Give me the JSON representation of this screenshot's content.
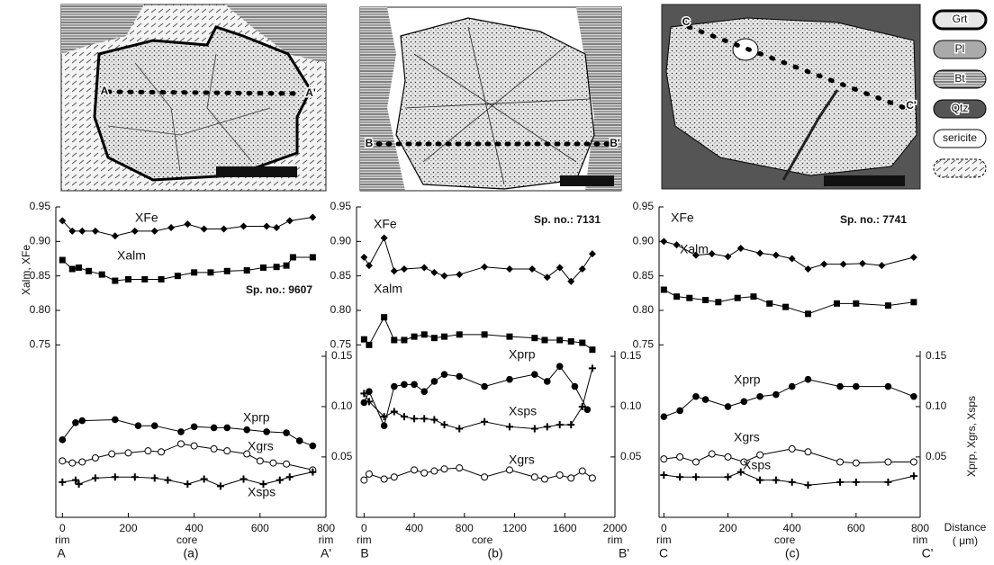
{
  "chart_data": [
    {
      "type": "line",
      "annotation": "Sp. no.: 9607",
      "ylabel": "Xalm, XFe",
      "xlim": [
        -20,
        800
      ],
      "xticks": [
        0,
        200,
        400,
        600,
        800
      ],
      "ylim": [
        0.5,
        0.95
      ],
      "yticks": [
        0.95,
        {
          "value": 0.9,
          "label": "0.90"
        },
        0.85,
        {
          "value": 0.8,
          "label": "0.80"
        },
        0.75
      ],
      "y2lim": [
        -0.01,
        0.15
      ],
      "y2ticks": [
        0.15,
        {
          "value": 0.1,
          "label": "0.10"
        },
        0.05
      ],
      "x_positions": [
        "rim",
        "core",
        "rim"
      ],
      "footer": [
        "A",
        "(a)",
        "A'"
      ],
      "series": [
        {
          "name": "XFe",
          "marker": "diamond",
          "x": [
            0,
            30,
            60,
            100,
            160,
            220,
            280,
            330,
            380,
            430,
            490,
            550,
            620,
            650,
            690,
            760
          ],
          "values": [
            0.93,
            0.915,
            0.915,
            0.915,
            0.908,
            0.915,
            0.915,
            0.92,
            0.925,
            0.918,
            0.918,
            0.922,
            0.922,
            0.92,
            0.93,
            0.935
          ]
        },
        {
          "name": "Xalm",
          "marker": "square",
          "x": [
            0,
            30,
            50,
            80,
            120,
            160,
            200,
            250,
            300,
            350,
            400,
            450,
            500,
            560,
            610,
            650,
            680,
            700,
            760
          ],
          "values": [
            0.873,
            0.86,
            0.862,
            0.857,
            0.852,
            0.843,
            0.845,
            0.845,
            0.845,
            0.85,
            0.855,
            0.855,
            0.857,
            0.858,
            0.862,
            0.863,
            0.865,
            0.877,
            0.877
          ]
        },
        {
          "name": "Xprp",
          "axis": "y2",
          "marker": "circle",
          "x": [
            0,
            40,
            60,
            160,
            230,
            280,
            360,
            400,
            460,
            500,
            560,
            620,
            680,
            720,
            760
          ],
          "values": [
            0.067,
            0.084,
            0.086,
            0.087,
            0.081,
            0.081,
            0.075,
            0.08,
            0.079,
            0.079,
            0.077,
            0.075,
            0.074,
            0.066,
            0.061
          ]
        },
        {
          "name": "Xgrs",
          "axis": "y2",
          "marker": "open-circle",
          "x": [
            0,
            30,
            60,
            100,
            150,
            200,
            260,
            300,
            360,
            400,
            460,
            500,
            560,
            600,
            640,
            680,
            760
          ],
          "values": [
            0.046,
            0.044,
            0.045,
            0.049,
            0.053,
            0.054,
            0.056,
            0.055,
            0.063,
            0.061,
            0.058,
            0.056,
            0.053,
            0.046,
            0.044,
            0.043,
            0.037
          ]
        },
        {
          "name": "Xsps",
          "axis": "y2",
          "marker": "plus",
          "x": [
            0,
            40,
            50,
            100,
            160,
            220,
            280,
            320,
            380,
            430,
            480,
            550,
            610,
            660,
            690,
            760
          ],
          "values": [
            0.025,
            0.027,
            0.023,
            0.029,
            0.03,
            0.03,
            0.029,
            0.027,
            0.023,
            0.028,
            0.021,
            0.028,
            0.023,
            0.027,
            0.03,
            0.035
          ]
        }
      ]
    },
    {
      "type": "line",
      "annotation": "Sp. no.: 7131",
      "xlim": [
        -60,
        2000
      ],
      "xticks": [
        0,
        400,
        800,
        1200,
        1600,
        2000
      ],
      "ylim": [
        0.5,
        0.95
      ],
      "yticks": [
        0.95,
        {
          "value": 0.9,
          "label": "0.90"
        },
        0.85,
        {
          "value": 0.8,
          "label": "0.80"
        },
        0.75
      ],
      "y2lim": [
        -0.01,
        0.15
      ],
      "y2ticks": [
        0.15,
        {
          "value": 0.1,
          "label": "0.10"
        },
        0.05
      ],
      "x_positions": [
        "rim",
        "core",
        "rim"
      ],
      "footer": [
        "B",
        "(b)",
        "B'"
      ],
      "series": [
        {
          "name": "XFe",
          "marker": "diamond",
          "x": [
            0,
            40,
            160,
            240,
            320,
            480,
            560,
            640,
            760,
            960,
            1160,
            1340,
            1460,
            1560,
            1650,
            1740,
            1820
          ],
          "values": [
            0.877,
            0.865,
            0.905,
            0.857,
            0.86,
            0.862,
            0.855,
            0.85,
            0.852,
            0.863,
            0.86,
            0.86,
            0.848,
            0.862,
            0.842,
            0.86,
            0.882
          ]
        },
        {
          "name": "Xalm",
          "marker": "square",
          "x": [
            0,
            40,
            160,
            240,
            320,
            400,
            480,
            560,
            640,
            760,
            960,
            1160,
            1360,
            1440,
            1560,
            1650,
            1740,
            1820
          ],
          "values": [
            0.758,
            0.75,
            0.79,
            0.757,
            0.757,
            0.762,
            0.765,
            0.76,
            0.762,
            0.765,
            0.765,
            0.762,
            0.76,
            0.757,
            0.757,
            0.755,
            0.753,
            0.743
          ]
        },
        {
          "name": "Xprp",
          "axis": "y2",
          "marker": "circle",
          "x": [
            0,
            40,
            160,
            240,
            320,
            400,
            480,
            560,
            640,
            760,
            960,
            1160,
            1360,
            1460,
            1560,
            1680,
            1780
          ],
          "values": [
            0.104,
            0.115,
            0.081,
            0.12,
            0.122,
            0.122,
            0.115,
            0.125,
            0.132,
            0.13,
            0.12,
            0.127,
            0.132,
            0.125,
            0.14,
            0.12,
            0.097
          ]
        },
        {
          "name": "Xsps",
          "axis": "y2",
          "marker": "plus",
          "x": [
            0,
            40,
            160,
            240,
            320,
            400,
            480,
            560,
            640,
            760,
            960,
            1160,
            1360,
            1460,
            1560,
            1650,
            1740,
            1820
          ],
          "values": [
            0.113,
            0.105,
            0.09,
            0.095,
            0.09,
            0.088,
            0.088,
            0.087,
            0.082,
            0.078,
            0.085,
            0.08,
            0.078,
            0.08,
            0.082,
            0.082,
            0.1,
            0.138
          ]
        },
        {
          "name": "Xgrs",
          "axis": "y2",
          "marker": "open-circle",
          "x": [
            0,
            40,
            160,
            240,
            400,
            480,
            560,
            640,
            760,
            960,
            1160,
            1360,
            1440,
            1560,
            1650,
            1740,
            1820
          ],
          "values": [
            0.027,
            0.033,
            0.028,
            0.03,
            0.037,
            0.034,
            0.036,
            0.038,
            0.039,
            0.03,
            0.037,
            0.03,
            0.028,
            0.032,
            0.029,
            0.036,
            0.029
          ]
        }
      ]
    },
    {
      "type": "line",
      "annotation": "Sp. no.: 7741",
      "y2label": "Xprp, Xgrs, Xsps",
      "xlabel_lines": [
        "Distance",
        "( μm)"
      ],
      "xlim": [
        -15,
        800
      ],
      "xticks": [
        0,
        200,
        400,
        600,
        800
      ],
      "ylim": [
        0.5,
        0.95
      ],
      "yticks": [
        0.95,
        {
          "value": 0.9,
          "label": "0.90"
        },
        0.85,
        {
          "value": 0.8,
          "label": "0.80"
        },
        0.75
      ],
      "y2lim": [
        -0.01,
        0.15
      ],
      "y2ticks": [
        0.15,
        {
          "value": 0.1,
          "label": "0.10"
        },
        0.05
      ],
      "x_positions": [
        "rim",
        "core",
        "rim"
      ],
      "footer": [
        "C",
        "(c)",
        "C'"
      ],
      "series": [
        {
          "name": "XFe",
          "marker": "diamond",
          "x": [
            0,
            40,
            100,
            150,
            200,
            240,
            300,
            350,
            400,
            450,
            500,
            560,
            620,
            680,
            780
          ],
          "values": [
            0.9,
            0.895,
            0.88,
            0.882,
            0.878,
            0.89,
            0.883,
            0.88,
            0.875,
            0.86,
            0.867,
            0.867,
            0.868,
            0.865,
            0.877
          ]
        },
        {
          "name": "Xalm",
          "marker": "square",
          "x": [
            0,
            40,
            80,
            130,
            170,
            230,
            280,
            330,
            380,
            450,
            540,
            600,
            700,
            780
          ],
          "values": [
            0.83,
            0.82,
            0.818,
            0.815,
            0.812,
            0.818,
            0.82,
            0.81,
            0.805,
            0.795,
            0.81,
            0.81,
            0.807,
            0.812
          ]
        },
        {
          "name": "Xprp",
          "axis": "y2",
          "marker": "circle",
          "x": [
            0,
            50,
            100,
            130,
            200,
            250,
            300,
            350,
            400,
            450,
            550,
            600,
            700,
            780
          ],
          "values": [
            0.09,
            0.096,
            0.11,
            0.107,
            0.1,
            0.105,
            0.11,
            0.112,
            0.12,
            0.127,
            0.12,
            0.12,
            0.12,
            0.11
          ]
        },
        {
          "name": "Xgrs",
          "axis": "y2",
          "marker": "open-circle",
          "x": [
            0,
            50,
            100,
            150,
            200,
            250,
            300,
            400,
            450,
            550,
            600,
            700,
            780
          ],
          "values": [
            0.048,
            0.05,
            0.045,
            0.053,
            0.05,
            0.045,
            0.052,
            0.058,
            0.055,
            0.045,
            0.044,
            0.045,
            0.045
          ]
        },
        {
          "name": "Xsps",
          "axis": "y2",
          "marker": "plus",
          "x": [
            0,
            50,
            100,
            200,
            240,
            300,
            350,
            400,
            450,
            550,
            600,
            700,
            780
          ],
          "values": [
            0.032,
            0.03,
            0.03,
            0.03,
            0.035,
            0.027,
            0.027,
            0.025,
            0.022,
            0.025,
            0.025,
            0.025,
            0.031
          ]
        }
      ]
    }
  ],
  "maps": [
    {
      "labels": [
        "A",
        "A'"
      ]
    },
    {
      "labels": [
        "B",
        "B'"
      ]
    },
    {
      "labels": [
        "C",
        "C'"
      ]
    }
  ],
  "legend": [
    "Grt",
    "Pl",
    "Bt",
    "Qtz",
    "sericite"
  ]
}
